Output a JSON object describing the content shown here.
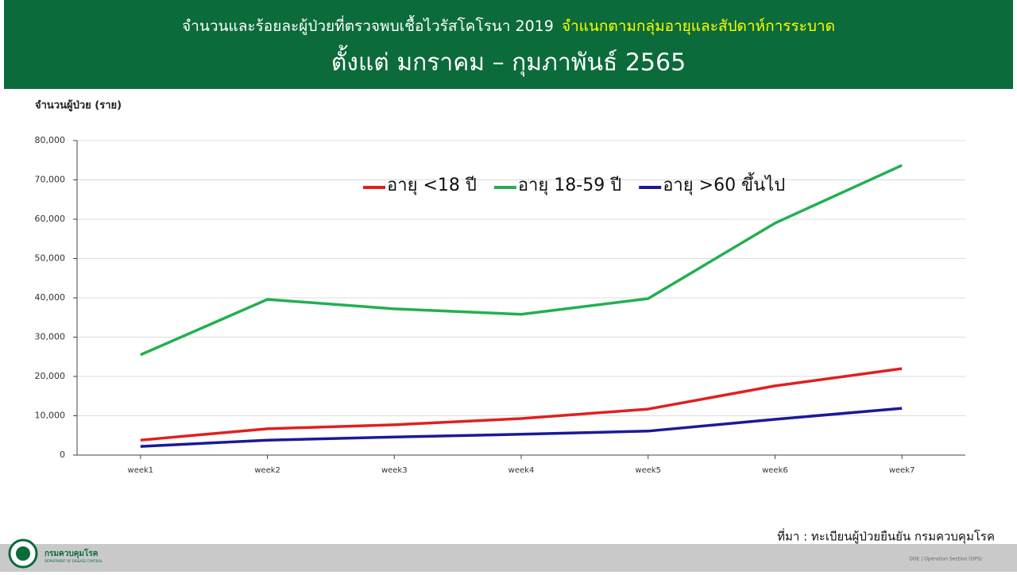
{
  "header": {
    "title": "จำนวนและร้อยละผู้ป่วยที่ตรวจพบเชื้อไวรัสโคโรนา 2019",
    "title_highlight": "จำแนกตามกลุ่มอายุและสัปดาห์การระบาด",
    "subtitle": "ตั้งแต่ มกราคม –  กุมภาพันธ์ 2565"
  },
  "chart_data": {
    "type": "line",
    "y_label": "จำนวนผู้ป่วย (ราย)",
    "categories": [
      "week1",
      "week2",
      "week3",
      "week4",
      "week5",
      "week6",
      "week7"
    ],
    "series": [
      {
        "name": "อายุ <18 ปี",
        "color": "#e02020",
        "values": [
          3800,
          6700,
          7700,
          9300,
          11700,
          17600,
          22000
        ]
      },
      {
        "name": "อายุ 18-59 ปี",
        "color": "#22b050",
        "values": [
          25500,
          39600,
          37200,
          35800,
          39800,
          59000,
          73700
        ]
      },
      {
        "name": "อายุ >60 ขึ้นไป",
        "color": "#1a1a9a",
        "values": [
          2200,
          3800,
          4600,
          5300,
          6100,
          9100,
          11900
        ]
      }
    ],
    "ylim": [
      0,
      80000
    ],
    "yticks": [
      0,
      {
        "value": 10000,
        "label": "10,000"
      },
      {
        "value": 20000,
        "label": "20,000"
      },
      {
        "value": 30000,
        "label": "30,000"
      },
      {
        "value": 40000,
        "label": "40,000"
      },
      {
        "value": 50000,
        "label": "50,000"
      },
      {
        "value": 60000,
        "label": "60,000"
      },
      {
        "value": 70000,
        "label": "70,000"
      },
      {
        "value": 80000,
        "label": "80,000"
      }
    ],
    "grid": true
  },
  "footer": {
    "source": "ที่มา : ทะเบียนผู้ป่วยยืนยัน กรมควบคุมโรค",
    "org": "กรมควบคุมโรค",
    "org_en": "DEPARTMENT OF DISEASE CONTROL",
    "section": "DOE | Operation Section (OPS)"
  }
}
